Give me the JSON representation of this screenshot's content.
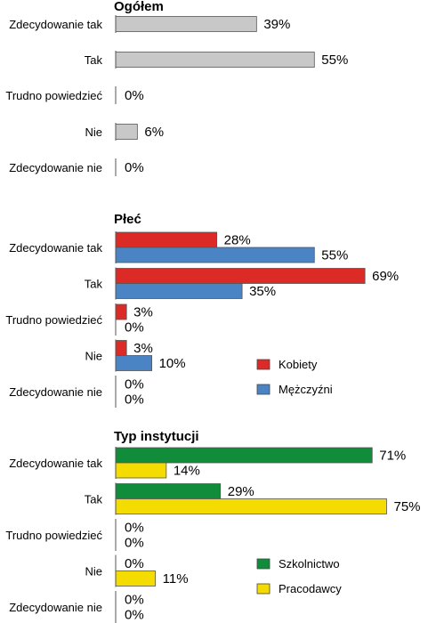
{
  "chart_data": [
    {
      "type": "bar",
      "title": "Ogółem",
      "categories": [
        "Zdecydowanie tak",
        "Tak",
        "Trudno powiedzieć",
        "Nie",
        "Zdecydowanie nie"
      ],
      "series": [
        {
          "values": [
            39,
            55,
            0,
            6,
            0
          ],
          "color": "#c8c8c8"
        }
      ],
      "value_suffix": "%",
      "xlim": [
        0,
        100
      ]
    },
    {
      "type": "bar",
      "title": "Płeć",
      "categories": [
        "Zdecydowanie tak",
        "Tak",
        "Trudno powiedzieć",
        "Nie",
        "Zdecydowanie nie"
      ],
      "series": [
        {
          "name": "Kobiety",
          "values": [
            28,
            69,
            3,
            3,
            0
          ],
          "color": "#dc2a27"
        },
        {
          "name": "Mężczyźni",
          "values": [
            55,
            35,
            0,
            10,
            0
          ],
          "color": "#4a84c4"
        }
      ],
      "value_suffix": "%",
      "xlim": [
        0,
        100
      ],
      "legend": "bottom-right"
    },
    {
      "type": "bar",
      "title": "Typ instytucji",
      "categories": [
        "Zdecydowanie tak",
        "Tak",
        "Trudno powiedzieć",
        "Nie",
        "Zdecydowanie nie"
      ],
      "series": [
        {
          "name": "Szkolnictwo",
          "values": [
            71,
            29,
            0,
            0,
            0
          ],
          "color": "#108c3a"
        },
        {
          "name": "Pracodawcy",
          "values": [
            14,
            75,
            0,
            11,
            0
          ],
          "color": "#f5dc00"
        }
      ],
      "value_suffix": "%",
      "xlim": [
        0,
        100
      ],
      "legend": "bottom-right"
    }
  ]
}
